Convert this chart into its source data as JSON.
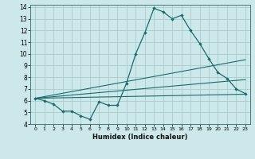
{
  "xlabel": "Humidex (Indice chaleur)",
  "xlim": [
    -0.5,
    23.5
  ],
  "ylim": [
    4,
    14.2
  ],
  "xticks": [
    0,
    1,
    2,
    3,
    4,
    5,
    6,
    7,
    8,
    9,
    10,
    11,
    12,
    13,
    14,
    15,
    16,
    17,
    18,
    19,
    20,
    21,
    22,
    23
  ],
  "yticks": [
    4,
    5,
    6,
    7,
    8,
    9,
    10,
    11,
    12,
    13,
    14
  ],
  "bg_color": "#cce8ea",
  "line_color": "#1a6b6b",
  "grid_color": "#aacccc",
  "main_x": [
    0,
    1,
    2,
    3,
    4,
    5,
    6,
    7,
    8,
    9,
    10,
    11,
    12,
    13,
    14,
    15,
    16,
    17,
    18,
    19,
    20,
    21,
    22,
    23
  ],
  "main_y": [
    6.2,
    6.0,
    5.7,
    5.1,
    5.1,
    4.7,
    4.4,
    5.9,
    5.6,
    5.6,
    7.5,
    10.0,
    11.8,
    13.9,
    13.6,
    13.0,
    13.3,
    12.0,
    10.9,
    9.6,
    8.4,
    7.9,
    7.0,
    6.6
  ],
  "band_lines": [
    {
      "x": [
        0,
        23
      ],
      "y": [
        6.2,
        6.55
      ]
    },
    {
      "x": [
        0,
        23
      ],
      "y": [
        6.2,
        7.8
      ]
    },
    {
      "x": [
        0,
        23
      ],
      "y": [
        6.2,
        9.5
      ]
    }
  ]
}
